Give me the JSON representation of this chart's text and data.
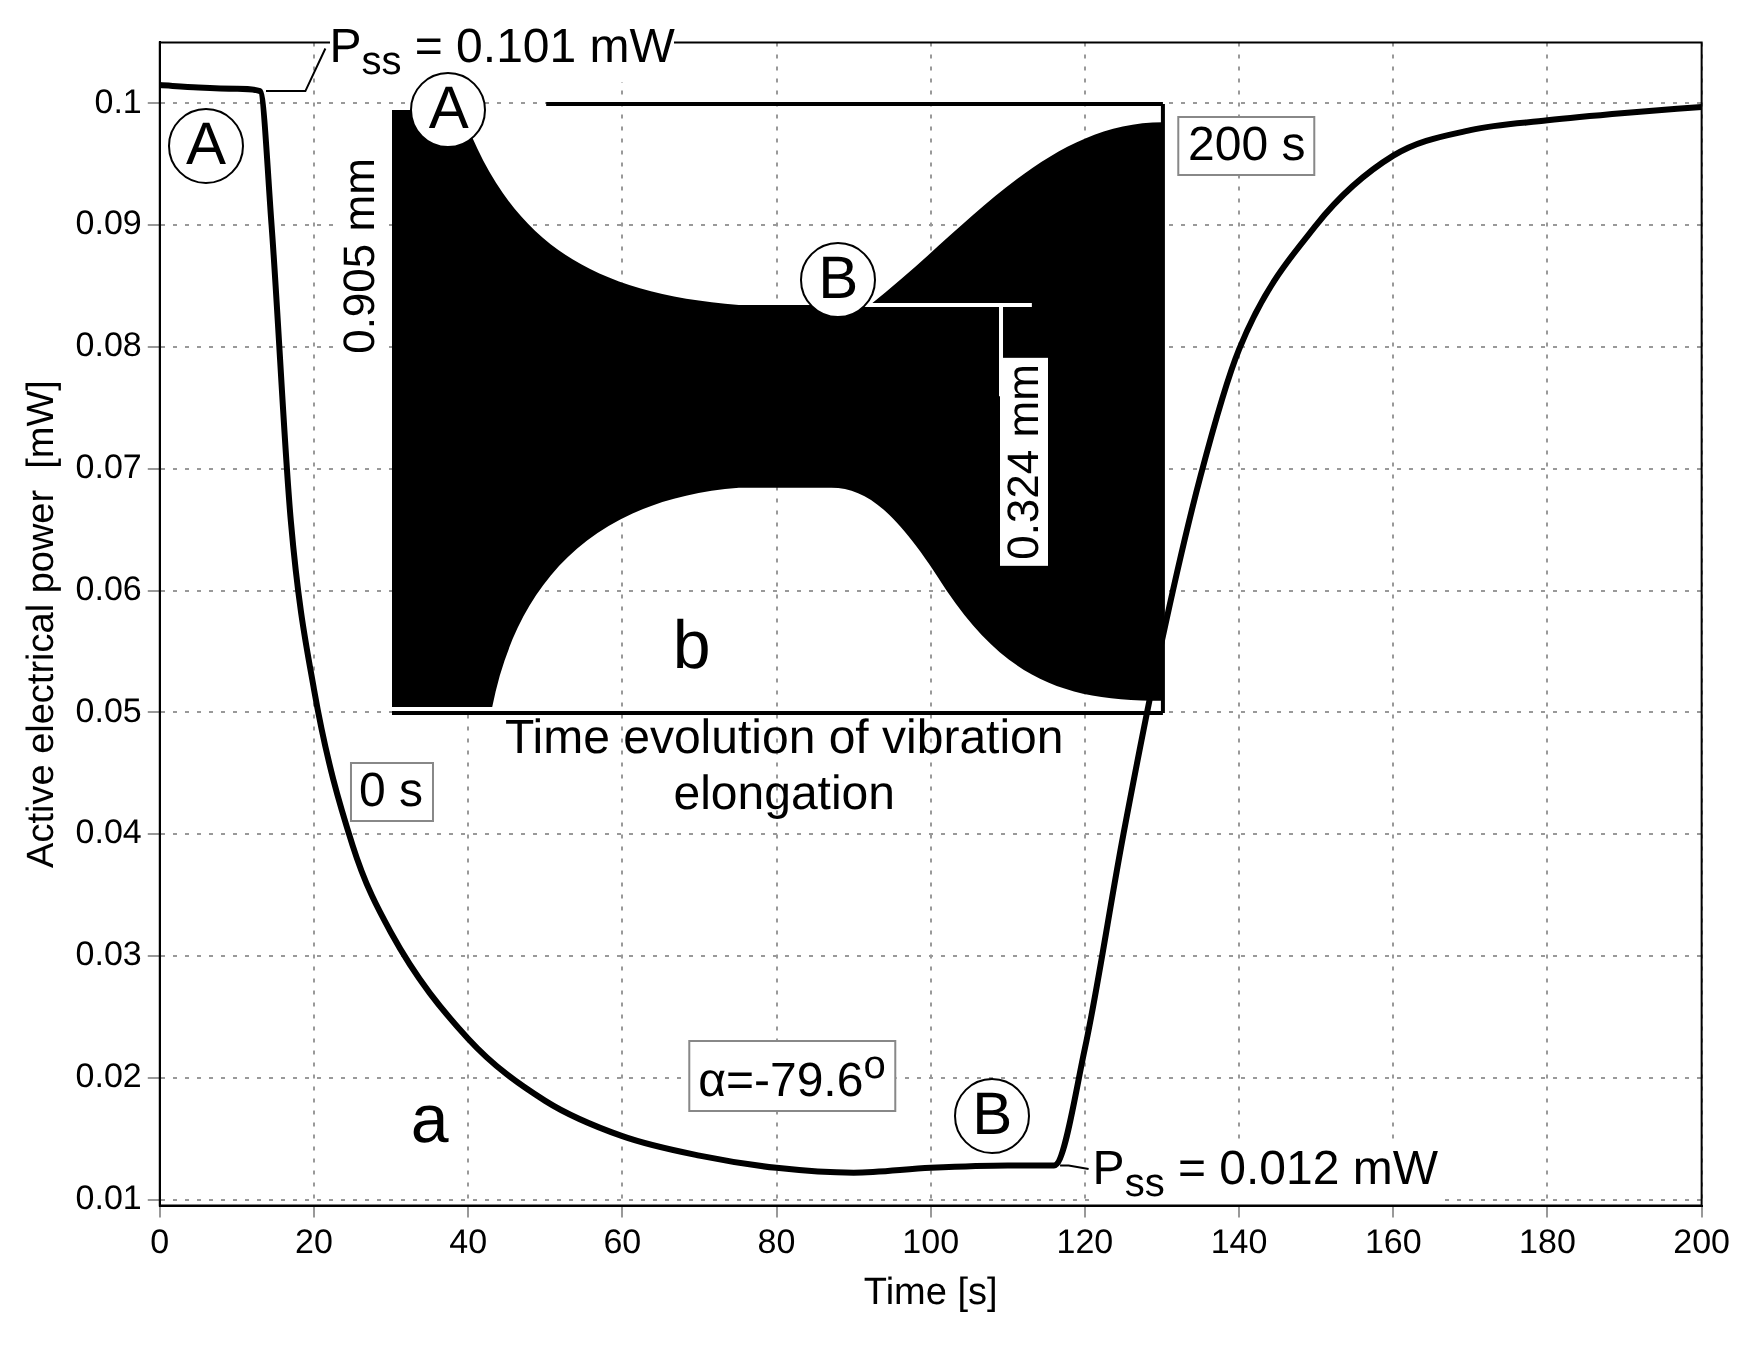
{
  "chart_data": {
    "type": "line",
    "xlabel": "Time [s]",
    "ylabel": "Active electrical power  [mW]",
    "x": [
      0,
      5,
      10,
      13,
      14.5,
      17,
      20,
      25,
      30,
      40,
      50,
      60,
      70,
      80,
      90,
      100,
      110,
      116,
      120,
      125,
      130,
      135,
      140,
      150,
      160,
      170,
      180,
      190,
      200
    ],
    "series": [
      {
        "color": "#000000",
        "values": [
          0.1015,
          0.1013,
          0.1012,
          0.101,
          0.09,
          0.0657,
          0.0519,
          0.0391,
          0.0319,
          0.0232,
          0.0181,
          0.0152,
          0.0136,
          0.0126,
          0.0122,
          0.0126,
          0.0128,
          0.0128,
          0.0224,
          0.04,
          0.0559,
          0.0694,
          0.0798,
          0.09,
          0.0957,
          0.0978,
          0.0986,
          0.0992,
          0.0997
        ]
      }
    ],
    "xlim": [
      0,
      200
    ],
    "xticks": [
      0,
      20,
      40,
      60,
      80,
      100,
      120,
      140,
      160,
      180,
      200
    ],
    "ylim": [
      0.0095,
      0.105
    ],
    "yticks": [
      0.01,
      0.02,
      0.03,
      0.04,
      0.05,
      0.06,
      0.07,
      0.08,
      0.09,
      0.1
    ],
    "grid": true,
    "marker": "none",
    "annotations": [
      {
        "text": "P$_{ss}$ = 0.101 mW",
        "x": 13,
        "y": 0.101
      },
      {
        "text": "P$_{ss}$ = 0.012 mW",
        "x": 116,
        "y": 0.0128
      },
      "A",
      "A",
      "B",
      "B",
      "0.905 mm",
      "0.324 mm",
      "200 s",
      "0 s",
      "b",
      "Time evolution of vibration elongation",
      "a",
      "α=-79.6$^{o}$"
    ]
  }
}
